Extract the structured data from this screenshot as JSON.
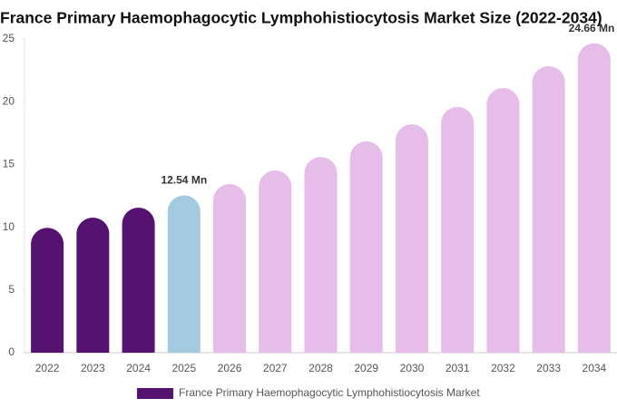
{
  "chart_data": {
    "type": "bar",
    "title": "France Primary Haemophagocytic Lymphohistiocytosis Market Size (2022-2034)",
    "categories": [
      "2022",
      "2023",
      "2024",
      "2025",
      "2026",
      "2027",
      "2028",
      "2029",
      "2030",
      "2031",
      "2032",
      "2033",
      "2034"
    ],
    "series": [
      {
        "name": "France Primary Haemophagocytic Lymphohistiocytosis Market",
        "color": "#541271",
        "colors": [
          "#541271",
          "#541271",
          "#541271",
          "#a3cade",
          "#e6bde8",
          "#e6bde8",
          "#e6bde8",
          "#e6bde8",
          "#e6bde8",
          "#e6bde8",
          "#e6bde8",
          "#e6bde8",
          "#e6bde8"
        ],
        "values": [
          9.95,
          10.77,
          11.56,
          12.54,
          13.44,
          14.52,
          15.6,
          16.84,
          18.2,
          19.58,
          21.1,
          22.83,
          24.66
        ],
        "value_labels": [
          null,
          null,
          null,
          "12.54 Mn",
          null,
          null,
          null,
          null,
          null,
          null,
          null,
          null,
          "24.66 Mn"
        ]
      }
    ],
    "ylim": [
      0,
      25
    ],
    "yticks": [
      0,
      5,
      10,
      15,
      20,
      25
    ]
  }
}
